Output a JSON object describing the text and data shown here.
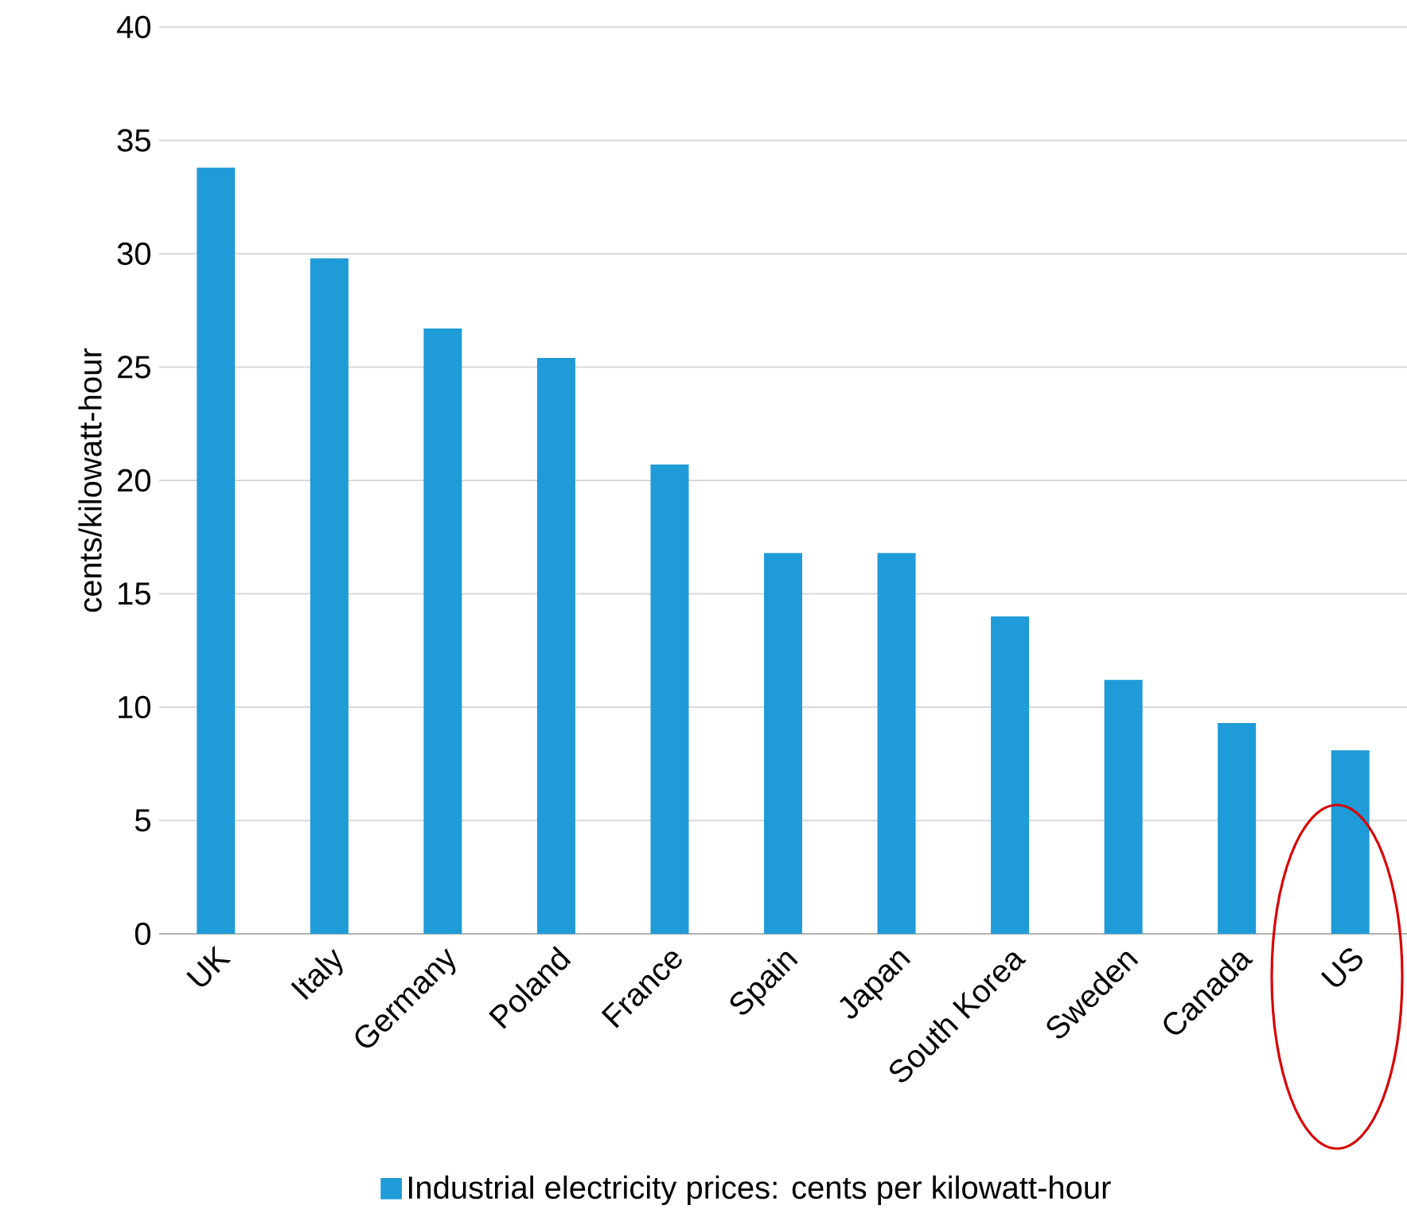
{
  "chart_data": {
    "type": "bar",
    "ylabel": "cents/kilowatt-hour",
    "categories": [
      "UK",
      "Italy",
      "Germany",
      "Poland",
      "France",
      "Spain",
      "Japan",
      "South Korea",
      "Sweden",
      "Canada",
      "US"
    ],
    "series": [
      {
        "name": "Industrial electricity prices: cents per kilowatt-hour",
        "color": "#1f9bd7",
        "values": [
          33.8,
          29.8,
          26.7,
          25.4,
          20.7,
          16.8,
          16.8,
          14.0,
          11.2,
          9.3,
          8.1
        ]
      }
    ],
    "ylim": [
      0,
      40
    ],
    "yticks": [
      0,
      5,
      10,
      15,
      20,
      25,
      30,
      35,
      40
    ],
    "grid": "y",
    "legend": "bottom"
  }
}
